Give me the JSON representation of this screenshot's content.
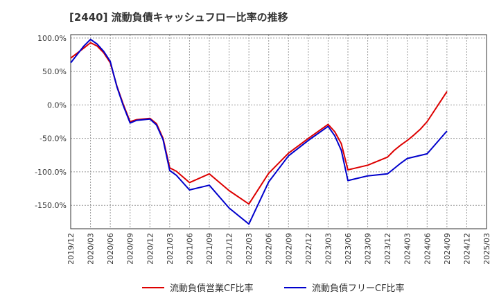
{
  "chart_data": {
    "type": "line",
    "title": "[2440]  流動負債キャッシュフロー比率の推移",
    "xlabel": "",
    "ylabel": "",
    "x_ticks": [
      "2019/12",
      "2020/03",
      "2020/06",
      "2020/09",
      "2020/12",
      "2021/03",
      "2021/06",
      "2021/09",
      "2021/12",
      "2022/03",
      "2022/06",
      "2022/09",
      "2022/12",
      "2023/03",
      "2023/06",
      "2023/09",
      "2023/12",
      "2024/03",
      "2024/06",
      "2024/09",
      "2024/12",
      "2025/03"
    ],
    "y_ticks": [
      "100.0%",
      "50.0%",
      "0.0%",
      "-50.0%",
      "-100.0%",
      "-150.0%"
    ],
    "y_tick_values": [
      100,
      50,
      0,
      -50,
      -100,
      -150
    ],
    "ylim": [
      -185,
      105
    ],
    "xlim": [
      "2019/12",
      "2025/03"
    ],
    "grid": true,
    "legend_position": "bottom-center",
    "series": [
      {
        "name": "流動負債営業CF比率",
        "color": "#dd0000",
        "points": [
          [
            "2019/12",
            70
          ],
          [
            "2020/02",
            85
          ],
          [
            "2020/03",
            93
          ],
          [
            "2020/04",
            88
          ],
          [
            "2020/05",
            78
          ],
          [
            "2020/06",
            63
          ],
          [
            "2020/07",
            28
          ],
          [
            "2020/08",
            0
          ],
          [
            "2020/09",
            -25
          ],
          [
            "2020/10",
            -22
          ],
          [
            "2020/12",
            -20
          ],
          [
            "2021/01",
            -28
          ],
          [
            "2021/02",
            -50
          ],
          [
            "2021/03",
            -94
          ],
          [
            "2021/04",
            -99
          ],
          [
            "2021/06",
            -116
          ],
          [
            "2021/09",
            -103
          ],
          [
            "2021/12",
            -128
          ],
          [
            "2022/03",
            -148
          ],
          [
            "2022/06",
            -102
          ],
          [
            "2022/09",
            -72
          ],
          [
            "2022/12",
            -50
          ],
          [
            "2023/03",
            -29
          ],
          [
            "2023/04",
            -40
          ],
          [
            "2023/05",
            -58
          ],
          [
            "2023/06",
            -97
          ],
          [
            "2023/09",
            -90
          ],
          [
            "2023/12",
            -78
          ],
          [
            "2024/01",
            -68
          ],
          [
            "2024/02",
            -60
          ],
          [
            "2024/03",
            -53
          ],
          [
            "2024/04",
            -45
          ],
          [
            "2024/05",
            -36
          ],
          [
            "2024/06",
            -25
          ],
          [
            "2024/09",
            20
          ]
        ]
      },
      {
        "name": "流動負債フリーCF比率",
        "color": "#0000cc",
        "points": [
          [
            "2019/12",
            63
          ],
          [
            "2020/02",
            88
          ],
          [
            "2020/03",
            98
          ],
          [
            "2020/04",
            91
          ],
          [
            "2020/05",
            80
          ],
          [
            "2020/06",
            65
          ],
          [
            "2020/07",
            27
          ],
          [
            "2020/08",
            -2
          ],
          [
            "2020/09",
            -27
          ],
          [
            "2020/10",
            -23
          ],
          [
            "2020/12",
            -21
          ],
          [
            "2021/01",
            -30
          ],
          [
            "2021/02",
            -52
          ],
          [
            "2021/03",
            -98
          ],
          [
            "2021/04",
            -105
          ],
          [
            "2021/06",
            -127
          ],
          [
            "2021/09",
            -120
          ],
          [
            "2021/12",
            -154
          ],
          [
            "2022/03",
            -178
          ],
          [
            "2022/06",
            -115
          ],
          [
            "2022/09",
            -76
          ],
          [
            "2022/12",
            -53
          ],
          [
            "2023/03",
            -32
          ],
          [
            "2023/04",
            -46
          ],
          [
            "2023/05",
            -68
          ],
          [
            "2023/06",
            -113
          ],
          [
            "2023/09",
            -106
          ],
          [
            "2023/12",
            -103
          ],
          [
            "2024/01",
            -95
          ],
          [
            "2024/02",
            -87
          ],
          [
            "2024/03",
            -80
          ],
          [
            "2024/06",
            -73
          ],
          [
            "2024/09",
            -39
          ]
        ]
      }
    ]
  }
}
